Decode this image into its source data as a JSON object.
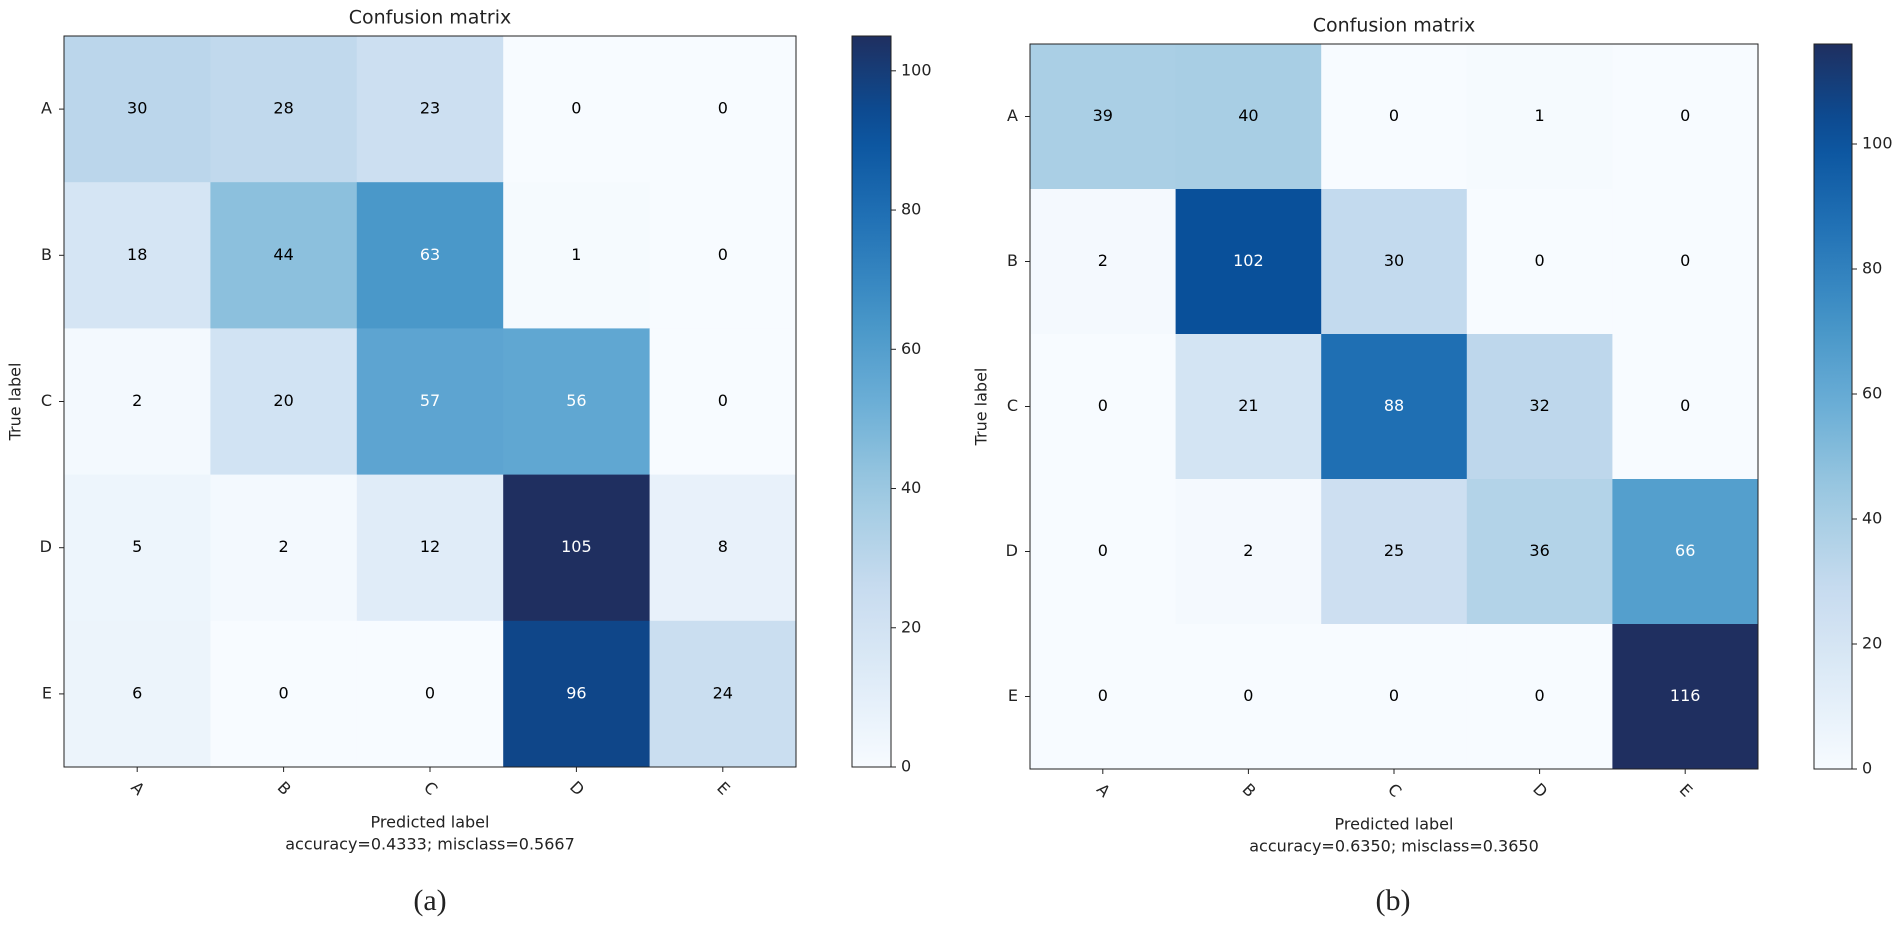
{
  "chart_data": [
    {
      "type": "heatmap",
      "title": "Confusion matrix",
      "x_categories": [
        "A",
        "B",
        "C",
        "D",
        "E"
      ],
      "y_categories": [
        "A",
        "B",
        "C",
        "D",
        "E"
      ],
      "values": [
        [
          30,
          28,
          23,
          0,
          0
        ],
        [
          18,
          44,
          63,
          1,
          0
        ],
        [
          2,
          20,
          57,
          56,
          0
        ],
        [
          5,
          2,
          12,
          105,
          8
        ],
        [
          6,
          0,
          0,
          96,
          24
        ]
      ],
      "xlabel": "Predicted label",
      "ylabel": "True label",
      "note": "accuracy=0.4333; misclass=0.5667",
      "caption": "(a)",
      "colormap": "Blues",
      "zlim": [
        0,
        105
      ],
      "zticks": [
        0,
        20,
        40,
        60,
        80,
        100
      ]
    },
    {
      "type": "heatmap",
      "title": "Confusion matrix",
      "x_categories": [
        "A",
        "B",
        "C",
        "D",
        "E"
      ],
      "y_categories": [
        "A",
        "B",
        "C",
        "D",
        "E"
      ],
      "values": [
        [
          39,
          40,
          0,
          1,
          0
        ],
        [
          2,
          102,
          30,
          0,
          0
        ],
        [
          0,
          21,
          88,
          32,
          0
        ],
        [
          0,
          2,
          25,
          36,
          66
        ],
        [
          0,
          0,
          0,
          0,
          116
        ]
      ],
      "xlabel": "Predicted label",
      "ylabel": "True label",
      "note": "accuracy=0.6350; misclass=0.3650",
      "caption": "(b)",
      "colormap": "Blues",
      "zlim": [
        0,
        116
      ],
      "zticks": [
        0,
        20,
        40,
        60,
        80,
        100
      ]
    }
  ]
}
